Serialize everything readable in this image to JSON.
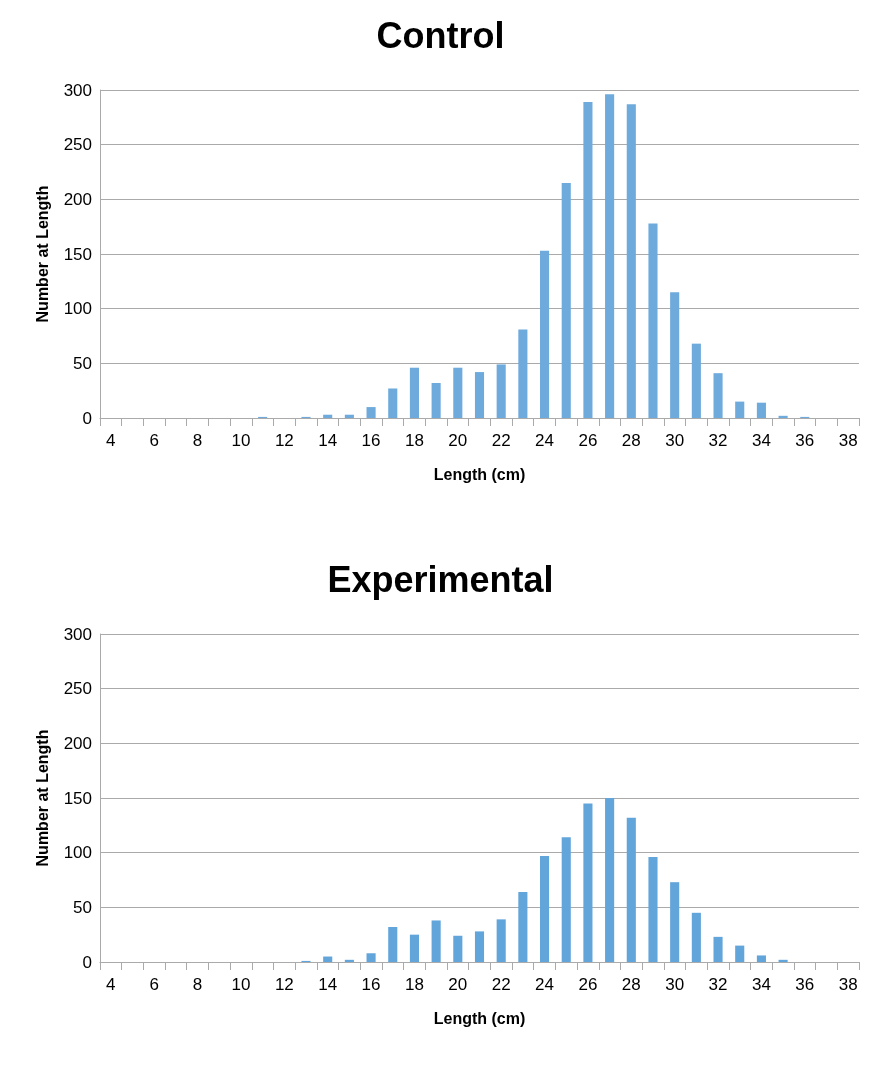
{
  "chart_data": [
    {
      "type": "bar",
      "title": "Control",
      "xlabel": "Length (cm)",
      "ylabel": "Number at Length",
      "categories": [
        "4",
        null,
        "6",
        null,
        "8",
        null,
        "10",
        null,
        "12",
        null,
        "14",
        null,
        "16",
        null,
        "18",
        null,
        "20",
        null,
        "22",
        null,
        "24",
        null,
        "26",
        null,
        "28",
        null,
        "30",
        null,
        "32",
        null,
        "34",
        null,
        "36",
        null,
        "38"
      ],
      "values": [
        0,
        0,
        0,
        0,
        0,
        0,
        0,
        1,
        0,
        1,
        3,
        3,
        10,
        27,
        46,
        32,
        46,
        42,
        49,
        81,
        153,
        215,
        289,
        296,
        287,
        178,
        115,
        68,
        41,
        15,
        14,
        2,
        1,
        0,
        0
      ],
      "color": "#6eabdc",
      "ylim": [
        0,
        300
      ],
      "yticks": [
        0,
        50,
        100,
        150,
        200,
        250,
        300
      ],
      "grid": "y"
    },
    {
      "type": "bar",
      "title": "Experimental",
      "xlabel": "Length (cm)",
      "ylabel": "Number at Length",
      "categories": [
        "4",
        null,
        "6",
        null,
        "8",
        null,
        "10",
        null,
        "12",
        null,
        "14",
        null,
        "16",
        null,
        "18",
        null,
        "20",
        null,
        "22",
        null,
        "24",
        null,
        "26",
        null,
        "28",
        null,
        "30",
        null,
        "32",
        null,
        "34",
        null,
        "36",
        null,
        "38"
      ],
      "values": [
        0,
        0,
        0,
        0,
        0,
        0,
        0,
        0,
        0,
        1,
        5,
        2,
        8,
        32,
        25,
        38,
        24,
        28,
        39,
        64,
        97,
        114,
        145,
        150,
        132,
        96,
        73,
        45,
        23,
        15,
        6,
        2,
        0,
        0,
        0
      ],
      "color": "#62a5db",
      "ylim": [
        0,
        300
      ],
      "yticks": [
        0,
        50,
        100,
        150,
        200,
        250,
        300
      ],
      "grid": "y"
    }
  ]
}
